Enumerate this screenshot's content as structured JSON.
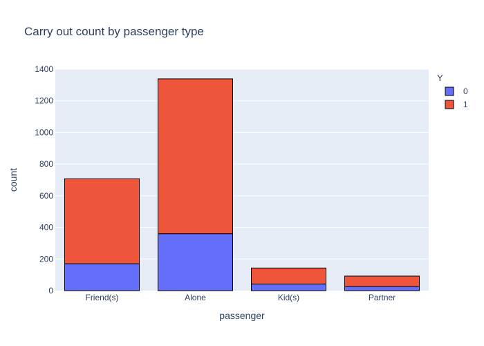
{
  "chart_data": {
    "type": "bar",
    "barmode": "stack",
    "title": "Carry out count by passenger type",
    "xlabel": "passenger",
    "ylabel": "count",
    "categories": [
      "Friend(s)",
      "Alone",
      "Kid(s)",
      "Partner"
    ],
    "series": [
      {
        "name": "0",
        "values": [
          170,
          360,
          42,
          26
        ],
        "color": "#636efa"
      },
      {
        "name": "1",
        "values": [
          537,
          979,
          101,
          66
        ],
        "color": "#ef553b"
      }
    ],
    "ylim": [
      0,
      1400
    ],
    "yticks": [
      0,
      200,
      400,
      600,
      800,
      1000,
      1200,
      1400
    ],
    "legend": {
      "title": "Y",
      "position": "top-right"
    },
    "grid": true,
    "plot_background": "#e5ecf6"
  }
}
